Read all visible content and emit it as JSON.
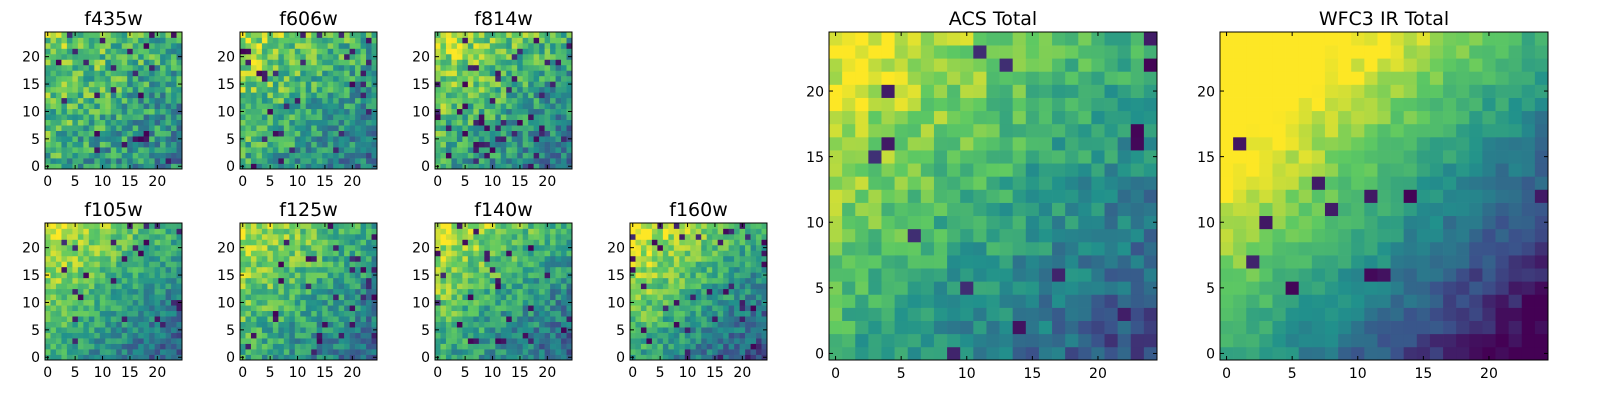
{
  "figure": {
    "colormap": "viridis",
    "colormap_stops": [
      "#440154",
      "#3b528b",
      "#21918c",
      "#5ec962",
      "#fde725"
    ]
  },
  "chart_data": [
    {
      "type": "heatmap",
      "title": "f435w",
      "grid_size": 25,
      "xticks": [
        "0",
        "5",
        "10",
        "15",
        "20"
      ],
      "yticks": [
        "0",
        "5",
        "10",
        "15",
        "20"
      ],
      "xlim": [
        0,
        25
      ],
      "ylim": [
        0,
        25
      ],
      "gradient_strength": 0.18,
      "noise": 0.45,
      "dark_cells": 0.04
    },
    {
      "type": "heatmap",
      "title": "f606w",
      "grid_size": 25,
      "xticks": [
        "0",
        "5",
        "10",
        "15",
        "20"
      ],
      "yticks": [
        "0",
        "5",
        "10",
        "15",
        "20"
      ],
      "xlim": [
        0,
        25
      ],
      "ylim": [
        0,
        25
      ],
      "gradient_strength": 0.25,
      "noise": 0.42,
      "dark_cells": 0.05
    },
    {
      "type": "heatmap",
      "title": "f814w",
      "grid_size": 25,
      "xticks": [
        "0",
        "5",
        "10",
        "15",
        "20"
      ],
      "yticks": [
        "0",
        "5",
        "10",
        "15",
        "20"
      ],
      "xlim": [
        0,
        25
      ],
      "ylim": [
        0,
        25
      ],
      "gradient_strength": 0.28,
      "noise": 0.42,
      "dark_cells": 0.07
    },
    {
      "type": "heatmap",
      "title": "f105w",
      "grid_size": 25,
      "xticks": [
        "0",
        "5",
        "10",
        "15",
        "20"
      ],
      "yticks": [
        "0",
        "5",
        "10",
        "15",
        "20"
      ],
      "xlim": [
        0,
        25
      ],
      "ylim": [
        0,
        25
      ],
      "gradient_strength": 0.35,
      "noise": 0.3,
      "dark_cells": 0.04
    },
    {
      "type": "heatmap",
      "title": "f125w",
      "grid_size": 25,
      "xticks": [
        "0",
        "5",
        "10",
        "15",
        "20"
      ],
      "yticks": [
        "0",
        "5",
        "10",
        "15",
        "20"
      ],
      "xlim": [
        0,
        25
      ],
      "ylim": [
        0,
        25
      ],
      "gradient_strength": 0.3,
      "noise": 0.35,
      "dark_cells": 0.05
    },
    {
      "type": "heatmap",
      "title": "f140w",
      "grid_size": 25,
      "xticks": [
        "0",
        "5",
        "10",
        "15",
        "20"
      ],
      "yticks": [
        "0",
        "5",
        "10",
        "15",
        "20"
      ],
      "xlim": [
        0,
        25
      ],
      "ylim": [
        0,
        25
      ],
      "gradient_strength": 0.32,
      "noise": 0.35,
      "dark_cells": 0.05
    },
    {
      "type": "heatmap",
      "title": "f160w",
      "grid_size": 25,
      "xticks": [
        "0",
        "5",
        "10",
        "15",
        "20"
      ],
      "yticks": [
        "0",
        "5",
        "10",
        "15",
        "20"
      ],
      "xlim": [
        0,
        25
      ],
      "ylim": [
        0,
        25
      ],
      "gradient_strength": 0.4,
      "noise": 0.32,
      "dark_cells": 0.05
    },
    {
      "type": "heatmap",
      "title": "ACS Total",
      "grid_size": 25,
      "xticks": [
        "0",
        "5",
        "10",
        "15",
        "20"
      ],
      "yticks": [
        "0",
        "5",
        "10",
        "15",
        "20"
      ],
      "xlim": [
        0,
        25
      ],
      "ylim": [
        0,
        25
      ],
      "gradient_strength": 0.4,
      "noise": 0.25,
      "dark_cells": 0.03
    },
    {
      "type": "heatmap",
      "title": "WFC3 IR Total",
      "grid_size": 25,
      "xticks": [
        "0",
        "5",
        "10",
        "15",
        "20"
      ],
      "yticks": [
        "0",
        "5",
        "10",
        "15",
        "20"
      ],
      "xlim": [
        0,
        25
      ],
      "ylim": [
        0,
        25
      ],
      "gradient_strength": 0.7,
      "noise": 0.15,
      "dark_cells": 0.03
    }
  ]
}
